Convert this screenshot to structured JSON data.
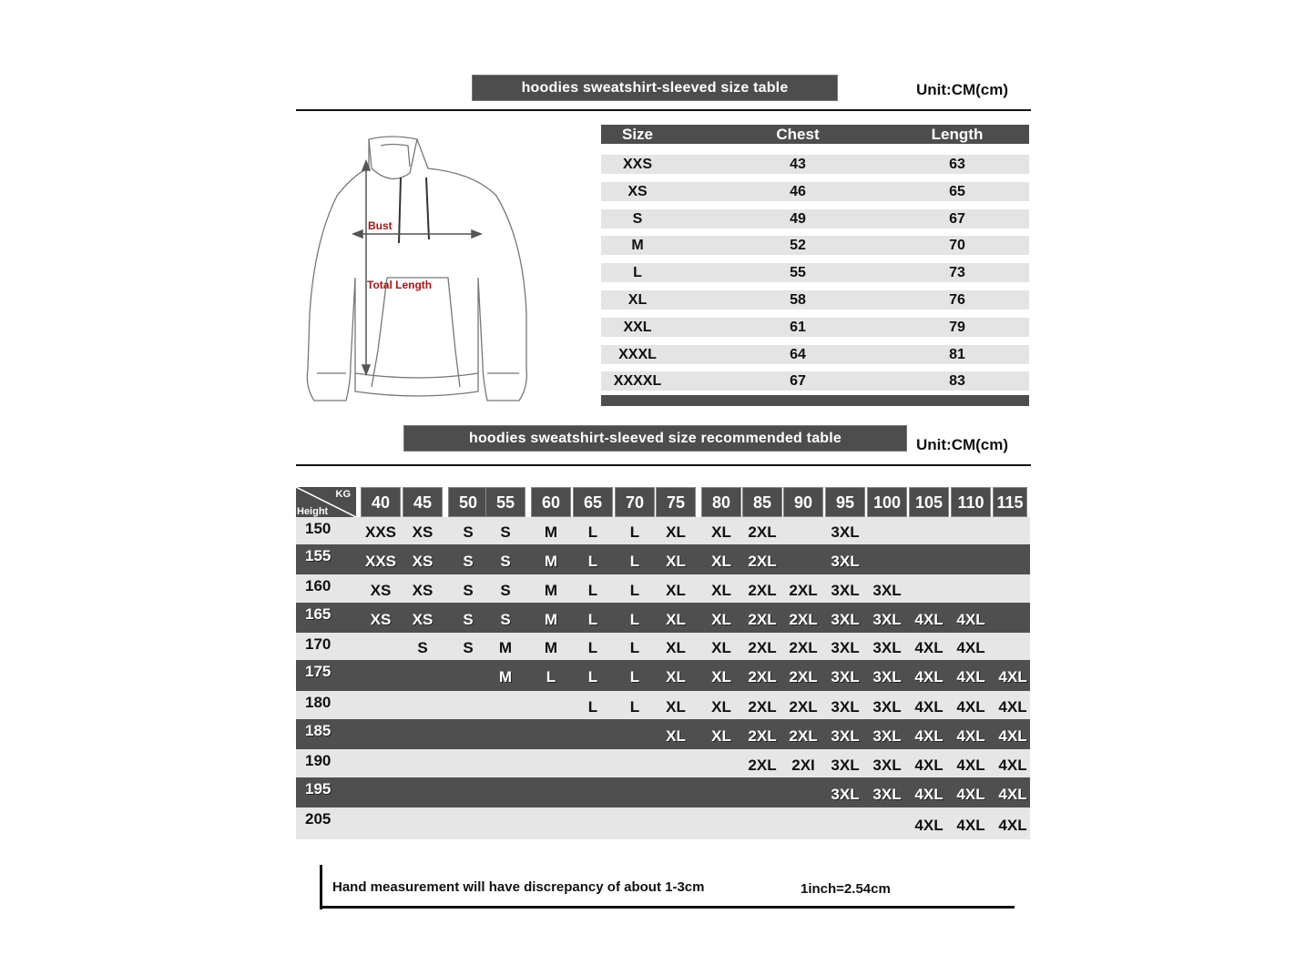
{
  "size_table": {
    "title": "hoodies sweatshirt-sleeved size  table",
    "unit": "Unit:CM(cm)",
    "headers": [
      "Size",
      "Chest",
      "Length"
    ],
    "rows": [
      [
        "XXS",
        "43",
        "63"
      ],
      [
        "XS",
        "46",
        "65"
      ],
      [
        "S",
        "49",
        "67"
      ],
      [
        "M",
        "52",
        "70"
      ],
      [
        "L",
        "55",
        "73"
      ],
      [
        "XL",
        "58",
        "76"
      ],
      [
        "XXL",
        "61",
        "79"
      ],
      [
        "XXXL",
        "64",
        "81"
      ],
      [
        "XXXXL",
        "67",
        "83"
      ]
    ]
  },
  "diagram": {
    "bust_label": "Bust",
    "length_label": "Total Length",
    "label_color": "#a01818"
  },
  "recommended_table": {
    "title": "hoodies sweatshirt-sleeved size recommended table",
    "unit": "Unit:CM(cm)",
    "corner_top": "KG",
    "corner_bottom": "Height",
    "weights": [
      "40",
      "45",
      "50",
      "55",
      "60",
      "65",
      "70",
      "75",
      "80",
      "85",
      "90",
      "95",
      "100",
      "105",
      "110",
      "115"
    ],
    "rows": [
      {
        "height": "150",
        "sizes": [
          "XXS",
          "XS",
          "S",
          "S",
          "M",
          "L",
          "L",
          "XL",
          "XL",
          "2XL",
          "",
          "3XL",
          "",
          "",
          "",
          ""
        ]
      },
      {
        "height": "155",
        "sizes": [
          "XXS",
          "XS",
          "S",
          "S",
          "M",
          "L",
          "L",
          "XL",
          "XL",
          "2XL",
          "",
          "3XL",
          "",
          "",
          "",
          ""
        ]
      },
      {
        "height": "160",
        "sizes": [
          "XS",
          "XS",
          "S",
          "S",
          "M",
          "L",
          "L",
          "XL",
          "XL",
          "2XL",
          "2XL",
          "3XL",
          "3XL",
          "",
          "",
          ""
        ]
      },
      {
        "height": "165",
        "sizes": [
          "XS",
          "XS",
          "S",
          "S",
          "M",
          "L",
          "L",
          "XL",
          "XL",
          "2XL",
          "2XL",
          "3XL",
          "3XL",
          "4XL",
          "4XL",
          ""
        ]
      },
      {
        "height": "170",
        "sizes": [
          "",
          "S",
          "S",
          "M",
          "M",
          "L",
          "L",
          "XL",
          "XL",
          "2XL",
          "2XL",
          "3XL",
          "3XL",
          "4XL",
          "4XL",
          ""
        ]
      },
      {
        "height": "175",
        "sizes": [
          "",
          "",
          "",
          "M",
          "L",
          "L",
          "L",
          "XL",
          "XL",
          "2XL",
          "2XL",
          "3XL",
          "3XL",
          "4XL",
          "4XL",
          "4XL"
        ]
      },
      {
        "height": "180",
        "sizes": [
          "",
          "",
          "",
          "",
          "",
          "L",
          "L",
          "XL",
          "XL",
          "2XL",
          "2XL",
          "3XL",
          "3XL",
          "4XL",
          "4XL",
          "4XL"
        ]
      },
      {
        "height": "185",
        "sizes": [
          "",
          "",
          "",
          "",
          "",
          "",
          "",
          "XL",
          "XL",
          "2XL",
          "2XL",
          "3XL",
          "3XL",
          "4XL",
          "4XL",
          "4XL"
        ]
      },
      {
        "height": "190",
        "sizes": [
          "",
          "",
          "",
          "",
          "",
          "",
          "",
          "",
          "",
          "2XL",
          "2XI",
          "3XL",
          "3XL",
          "4XL",
          "4XL",
          "4XL"
        ]
      },
      {
        "height": "195",
        "sizes": [
          "",
          "",
          "",
          "",
          "",
          "",
          "",
          "",
          "",
          "",
          "",
          "3XL",
          "3XL",
          "4XL",
          "4XL",
          "4XL"
        ]
      },
      {
        "height": "205",
        "sizes": [
          "",
          "",
          "",
          "",
          "",
          "",
          "",
          "",
          "",
          "",
          "",
          "",
          "",
          "4XL",
          "4XL",
          "4XL"
        ]
      }
    ]
  },
  "footer": {
    "note": "Hand measurement will have discrepancy of about  1-3cm",
    "conversion": "1inch=2.54cm"
  },
  "colors": {
    "dark": "#4d4d4d",
    "light": "#e6e6e6"
  }
}
